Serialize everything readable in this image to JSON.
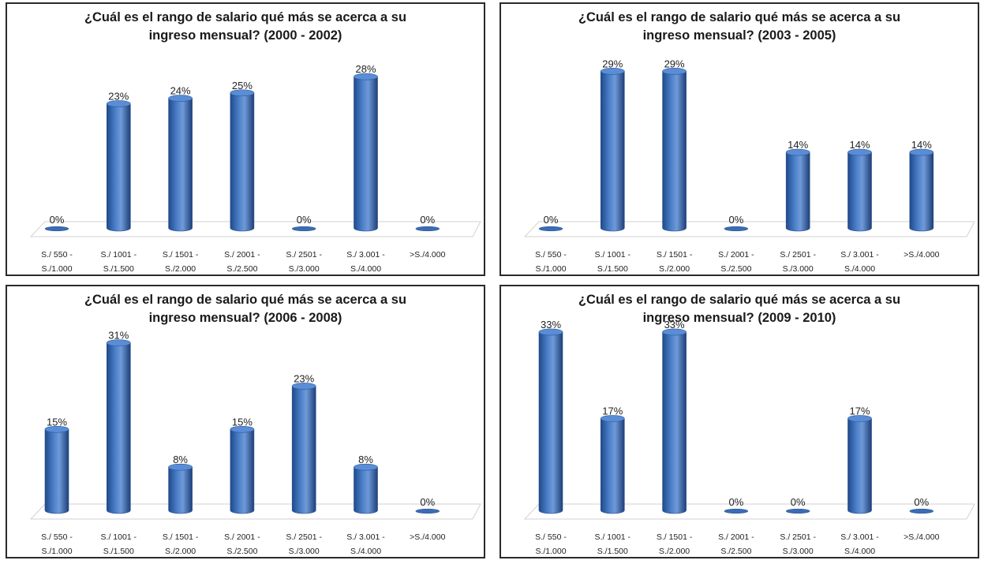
{
  "chart_data": [
    {
      "type": "bar",
      "title_line1": "¿Cuál es el rango de salario qué más se acerca a su",
      "title_line2": "ingreso mensual?  (2000 - 2002)",
      "categories": [
        [
          "S./ 550 -",
          "S./1.000"
        ],
        [
          "S./ 1001 -",
          "S./1.500"
        ],
        [
          "S./ 1501 -",
          "S./2.000"
        ],
        [
          "S./ 2001 -",
          "S./2.500"
        ],
        [
          "S./ 2501 -",
          "S./3.000"
        ],
        [
          "S./ 3.001 -",
          "S./4.000"
        ],
        [
          ">S./4.000"
        ]
      ],
      "values": [
        0,
        23,
        24,
        25,
        0,
        28,
        0
      ],
      "data_labels": [
        "0%",
        "23%",
        "24%",
        "25%",
        "0%",
        "28%",
        "0%"
      ],
      "ylim": [
        0,
        35
      ],
      "style": "3d-cylinder",
      "bar_color": "#4a7ec8",
      "grid": false
    },
    {
      "type": "bar",
      "title_line1": "¿Cuál es el rango de salario qué más se acerca a su",
      "title_line2": "ingreso mensual?  (2003 - 2005)",
      "categories": [
        [
          "S./ 550 -",
          "S./1.000"
        ],
        [
          "S./ 1001 -",
          "S./1.500"
        ],
        [
          "S./ 1501 -",
          "S./2.000"
        ],
        [
          "S./ 2001 -",
          "S./2.500"
        ],
        [
          "S./ 2501 -",
          "S./3.000"
        ],
        [
          "S./ 3.001 -",
          "S./4.000"
        ],
        [
          ">S./4.000"
        ]
      ],
      "values": [
        0,
        29,
        29,
        0,
        14,
        14,
        14
      ],
      "data_labels": [
        "0%",
        "29%",
        "29%",
        "0%",
        "14%",
        "14%",
        "14%"
      ],
      "ylim": [
        0,
        35
      ],
      "style": "3d-cylinder",
      "bar_color": "#4a7ec8",
      "grid": false
    },
    {
      "type": "bar",
      "title_line1": "¿Cuál es el rango de salario qué más se acerca a su",
      "title_line2": "ingreso mensual?  (2006 - 2008)",
      "categories": [
        [
          "S./ 550 -",
          "S./1.000"
        ],
        [
          "S./ 1001 -",
          "S./1.500"
        ],
        [
          "S./ 1501 -",
          "S./2.000"
        ],
        [
          "S./ 2001 -",
          "S./2.500"
        ],
        [
          "S./ 2501 -",
          "S./3.000"
        ],
        [
          "S./ 3.001 -",
          "S./4.000"
        ],
        [
          ">S./4.000"
        ]
      ],
      "values": [
        15,
        31,
        8,
        15,
        23,
        8,
        0
      ],
      "data_labels": [
        "15%",
        "31%",
        "8%",
        "15%",
        "23%",
        "8%",
        "0%"
      ],
      "ylim": [
        0,
        35
      ],
      "style": "3d-cylinder",
      "bar_color": "#4a7ec8",
      "grid": false
    },
    {
      "type": "bar",
      "title_line1": "¿Cuál es el rango de salario qué más se acerca a su",
      "title_line2": "ingreso mensual?  (2009 - 2010)",
      "categories": [
        [
          "S./ 550 -",
          "S./1.000"
        ],
        [
          "S./ 1001 -",
          "S./1.500"
        ],
        [
          "S./ 1501 -",
          "S./2.000"
        ],
        [
          "S./ 2001 -",
          "S./2.500"
        ],
        [
          "S./ 2501 -",
          "S./3.000"
        ],
        [
          "S./ 3.001 -",
          "S./4.000"
        ],
        [
          ">S./4.000"
        ]
      ],
      "values": [
        33,
        17,
        33,
        0,
        0,
        17,
        0
      ],
      "data_labels": [
        "33%",
        "17%",
        "33%",
        "0%",
        "0%",
        "17%",
        "0%"
      ],
      "ylim": [
        0,
        35
      ],
      "style": "3d-cylinder",
      "bar_color": "#4a7ec8",
      "grid": false
    }
  ]
}
